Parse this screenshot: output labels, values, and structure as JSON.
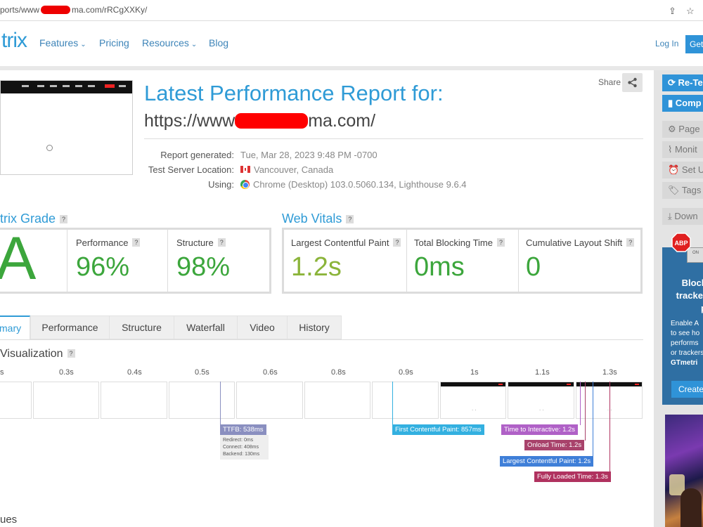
{
  "browser": {
    "url_prefix": "ports/www",
    "url_suffix": "ma.com/rRCgXXKy/"
  },
  "header": {
    "logo": "trix",
    "nav": [
      {
        "label": "Features",
        "caret": "⌄"
      },
      {
        "label": "Pricing"
      },
      {
        "label": "Resources",
        "caret": "⌄"
      },
      {
        "label": "Blog"
      }
    ],
    "login": "Log In",
    "get": "Get"
  },
  "report": {
    "share_label": "Share",
    "title": "Latest Performance Report for:",
    "url_prefix": "https://www",
    "url_suffix": "ma.com/",
    "meta": [
      {
        "label": "Report generated:",
        "value": "Tue, Mar 28, 2023 9:48 PM -0700"
      },
      {
        "label": "Test Server Location:",
        "value": "Vancouver, Canada"
      },
      {
        "label": "Using:",
        "value": "Chrome (Desktop) 103.0.5060.134, Lighthouse 9.6.4"
      }
    ]
  },
  "grade": {
    "heading": "trix Grade",
    "letter": "A",
    "performance_label": "Performance",
    "performance_value": "96%",
    "structure_label": "Structure",
    "structure_value": "98%"
  },
  "vitals": {
    "heading": "Web Vitals",
    "lcp_label": "Largest Contentful Paint",
    "lcp_value": "1.2s",
    "tbt_label": "Total Blocking Time",
    "tbt_value": "0ms",
    "cls_label": "Cumulative Layout Shift",
    "cls_value": "0"
  },
  "tabs": [
    "mary",
    "Performance",
    "Structure",
    "Waterfall",
    "Video",
    "History"
  ],
  "visualization": {
    "title": "Visualization",
    "ticks": [
      "s",
      "0.3s",
      "0.4s",
      "0.5s",
      "0.6s",
      "0.8s",
      "0.9s",
      "1s",
      "1.1s",
      "1.3s"
    ],
    "frame_dots": ". .",
    "markers": {
      "ttfb": "TTFB: 538ms",
      "ttfb_detail": [
        "Redirect: 0ms",
        "Connect: 408ms",
        "Backend: 130ms"
      ],
      "fcp": "First Contentful Paint: 857ms",
      "tti": "Time to Interactive: 1.2s",
      "onload": "Onload Time: 1.2s",
      "lcp": "Largest Contentful Paint: 1.2s",
      "fully_loaded": "Fully Loaded Time: 1.3s"
    },
    "colors": {
      "ttfb": "#8a8fc0",
      "fcp": "#33b0e0",
      "tti": "#b061c7",
      "onload": "#a8426b",
      "lcp": "#3f7fd8",
      "fully_loaded": "#b0325f"
    }
  },
  "issues_heading": "ues",
  "sidebar": {
    "buttons": [
      "Re-Te",
      "Comp",
      "Page",
      "Monit",
      "Set U",
      "Tags",
      "Down"
    ],
    "ad_badge": "ABP",
    "ad_window_text": "ON",
    "ad_title": [
      "Block",
      "tracker",
      "p"
    ],
    "ad_body": [
      "Enable A",
      "to see ho",
      "performs",
      "or trackers",
      "GTmetri"
    ],
    "ad_button": "Create"
  },
  "accent_color": "#2f9bd6",
  "grade_color": "#3ca63c"
}
